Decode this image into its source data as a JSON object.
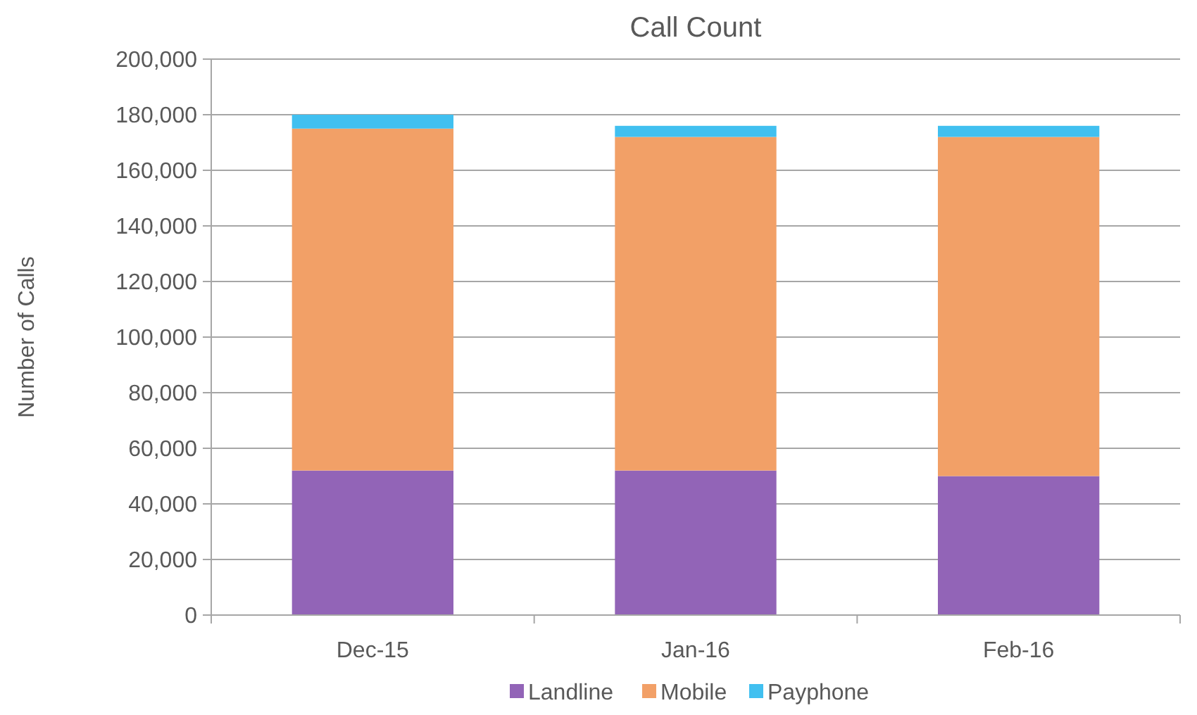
{
  "chart_data": {
    "type": "bar",
    "title": "Call Count",
    "ylabel": "Number of Calls",
    "categories": [
      "Dec-15",
      "Jan-16",
      "Feb-16"
    ],
    "stacked": true,
    "series": [
      {
        "name": "Landline",
        "color": "#9264b7",
        "values": [
          52000,
          52000,
          50000
        ]
      },
      {
        "name": "Mobile",
        "color": "#f2a067",
        "values": [
          123000,
          120000,
          122000
        ]
      },
      {
        "name": "Payphone",
        "color": "#41c0f0",
        "values": [
          5000,
          4000,
          4000
        ]
      }
    ],
    "ylim": [
      0,
      200000
    ],
    "yticks": [
      {
        "value": 0,
        "label": "0"
      },
      {
        "value": 20000,
        "label": "20,000"
      },
      {
        "value": 40000,
        "label": "40,000"
      },
      {
        "value": 60000,
        "label": "60,000"
      },
      {
        "value": 80000,
        "label": "80,000"
      },
      {
        "value": 100000,
        "label": "100,000"
      },
      {
        "value": 120000,
        "label": "120,000"
      },
      {
        "value": 140000,
        "label": "140,000"
      },
      {
        "value": 160000,
        "label": "160,000"
      },
      {
        "value": 180000,
        "label": "180,000"
      },
      {
        "value": 200000,
        "label": "200,000"
      }
    ],
    "grid": "y",
    "legend": "bottom"
  }
}
